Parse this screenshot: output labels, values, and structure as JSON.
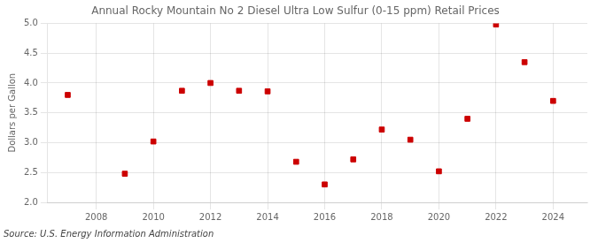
{
  "chart_data": {
    "type": "scatter",
    "title": "Annual Rocky Mountain No 2 Diesel Ultra Low Sulfur (0-15 ppm) Retail Prices",
    "y_label": "Dollars per Gallon",
    "annotation": "Source: U.S. Energy Information Administration",
    "x": [
      2007,
      2009,
      2010,
      2011,
      2012,
      2013,
      2014,
      2015,
      2016,
      2017,
      2018,
      2019,
      2020,
      2021,
      2022,
      2023,
      2024
    ],
    "values": [
      3.8,
      2.48,
      3.02,
      3.87,
      4.0,
      3.87,
      3.86,
      2.68,
      2.3,
      2.72,
      3.22,
      3.05,
      2.52,
      3.4,
      4.98,
      4.35,
      3.7
    ],
    "color": "#cc0000",
    "marker": "square",
    "xlim": [
      2006.3,
      2025.2
    ],
    "xticks": [
      2008,
      2010,
      2012,
      2014,
      2016,
      2018,
      2020,
      2022,
      2024
    ],
    "ylim": [
      2.0,
      5.0
    ],
    "yticks": [
      {
        "value": 2.0,
        "label": "2.0"
      },
      2.5,
      {
        "value": 3.0,
        "label": "3.0"
      },
      3.5,
      {
        "value": 4.0,
        "label": "4.0"
      },
      4.5,
      {
        "value": 5.0,
        "label": "5.0"
      }
    ],
    "grid": true
  }
}
